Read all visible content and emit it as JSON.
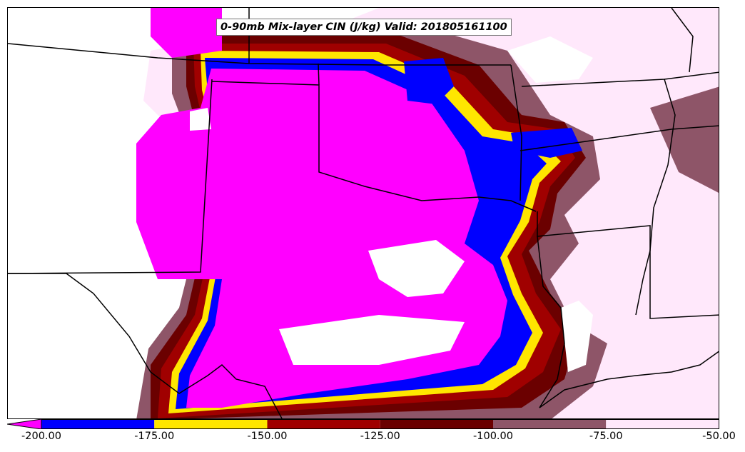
{
  "title": "0-90mb Mix-layer CIN (J/kg) Valid: 201805161100",
  "colorbar": {
    "min": -200,
    "max": -50,
    "extend": "min",
    "ticks": [
      "-200.00",
      "-175.00",
      "-150.00",
      "-125.00",
      "-100.00",
      "-75.00",
      "-50.00"
    ],
    "bins": [
      {
        "from": -200,
        "to": -175,
        "color": "#0000ff"
      },
      {
        "from": -175,
        "to": -150,
        "color": "#ffe600"
      },
      {
        "from": -150,
        "to": -125,
        "color": "#a00000"
      },
      {
        "from": -125,
        "to": -100,
        "color": "#6b0000"
      },
      {
        "from": -100,
        "to": -75,
        "color": "#8e5568"
      },
      {
        "from": -75,
        "to": -50,
        "color": "#ffe8fb"
      }
    ],
    "under_color": "#ff00ff"
  },
  "colors": {
    "magenta": "#ff00ff",
    "blue": "#0000ff",
    "yellow": "#ffe600",
    "red": "#a00000",
    "darkred": "#6b0000",
    "mauve": "#8e5568",
    "pink": "#ffe8fb",
    "boundary": "#000000"
  }
}
